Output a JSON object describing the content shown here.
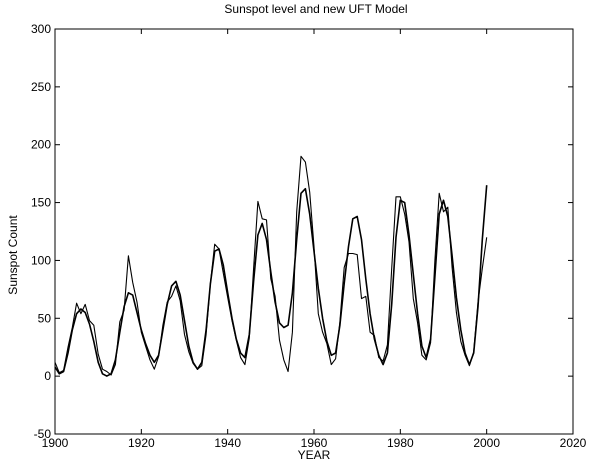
{
  "chart_data": {
    "type": "line",
    "title": "Sunspot level and new UFT Model",
    "xlabel": "YEAR",
    "ylabel": "Sunspot Count",
    "xlim": [
      1900,
      2020
    ],
    "ylim": [
      -50,
      300
    ],
    "xticks": [
      1900,
      1920,
      1940,
      1960,
      1980,
      2000,
      2020
    ],
    "yticks": [
      -50,
      0,
      50,
      100,
      150,
      200,
      250,
      300
    ],
    "grid": false,
    "series": [
      {
        "values": [
          [
            1900,
            12
          ],
          [
            1901,
            3
          ],
          [
            1902,
            5
          ],
          [
            1903,
            25
          ],
          [
            1904,
            42
          ],
          [
            1905,
            63
          ],
          [
            1906,
            54
          ],
          [
            1907,
            62
          ],
          [
            1908,
            48
          ],
          [
            1909,
            44
          ],
          [
            1910,
            19
          ],
          [
            1911,
            6
          ],
          [
            1912,
            4
          ],
          [
            1913,
            1
          ],
          [
            1914,
            10
          ],
          [
            1915,
            47
          ],
          [
            1916,
            57
          ],
          [
            1917,
            104
          ],
          [
            1918,
            81
          ],
          [
            1919,
            64
          ],
          [
            1920,
            38
          ],
          [
            1921,
            26
          ],
          [
            1922,
            14
          ],
          [
            1923,
            6
          ],
          [
            1924,
            17
          ],
          [
            1925,
            44
          ],
          [
            1926,
            64
          ],
          [
            1927,
            69
          ],
          [
            1928,
            78
          ],
          [
            1929,
            65
          ],
          [
            1930,
            36
          ],
          [
            1931,
            21
          ],
          [
            1932,
            11
          ],
          [
            1933,
            6
          ],
          [
            1934,
            9
          ],
          [
            1935,
            36
          ],
          [
            1936,
            80
          ],
          [
            1937,
            114
          ],
          [
            1938,
            110
          ],
          [
            1939,
            89
          ],
          [
            1940,
            68
          ],
          [
            1941,
            48
          ],
          [
            1942,
            31
          ],
          [
            1943,
            16
          ],
          [
            1944,
            10
          ],
          [
            1945,
            33
          ],
          [
            1946,
            93
          ],
          [
            1947,
            151
          ],
          [
            1948,
            136
          ],
          [
            1949,
            135
          ],
          [
            1950,
            84
          ],
          [
            1951,
            69
          ],
          [
            1952,
            31
          ],
          [
            1953,
            14
          ],
          [
            1954,
            4
          ],
          [
            1955,
            38
          ],
          [
            1956,
            142
          ],
          [
            1957,
            190
          ],
          [
            1958,
            185
          ],
          [
            1959,
            159
          ],
          [
            1960,
            112
          ],
          [
            1961,
            54
          ],
          [
            1962,
            38
          ],
          [
            1963,
            28
          ],
          [
            1964,
            10
          ],
          [
            1965,
            15
          ],
          [
            1966,
            47
          ],
          [
            1967,
            94
          ],
          [
            1968,
            106
          ],
          [
            1969,
            106
          ],
          [
            1970,
            105
          ],
          [
            1971,
            67
          ],
          [
            1972,
            69
          ],
          [
            1973,
            38
          ],
          [
            1974,
            35
          ],
          [
            1975,
            16
          ],
          [
            1976,
            13
          ],
          [
            1977,
            27
          ],
          [
            1978,
            93
          ],
          [
            1979,
            155
          ],
          [
            1980,
            155
          ],
          [
            1981,
            140
          ],
          [
            1982,
            116
          ],
          [
            1983,
            67
          ],
          [
            1984,
            46
          ],
          [
            1985,
            18
          ],
          [
            1986,
            14
          ],
          [
            1987,
            29
          ],
          [
            1988,
            100
          ],
          [
            1989,
            158
          ],
          [
            1990,
            142
          ],
          [
            1991,
            146
          ],
          [
            1992,
            94
          ],
          [
            1993,
            55
          ],
          [
            1994,
            30
          ],
          [
            1995,
            18
          ],
          [
            1996,
            9
          ],
          [
            1997,
            21
          ],
          [
            1998,
            64
          ],
          [
            1999,
            93
          ],
          [
            2000,
            120
          ]
        ]
      },
      {
        "values": [
          [
            1900,
            8
          ],
          [
            1901,
            2
          ],
          [
            1902,
            4
          ],
          [
            1903,
            20
          ],
          [
            1904,
            40
          ],
          [
            1905,
            54
          ],
          [
            1906,
            58
          ],
          [
            1907,
            55
          ],
          [
            1908,
            45
          ],
          [
            1909,
            30
          ],
          [
            1910,
            12
          ],
          [
            1911,
            2
          ],
          [
            1912,
            0
          ],
          [
            1913,
            2
          ],
          [
            1914,
            14
          ],
          [
            1915,
            38
          ],
          [
            1916,
            60
          ],
          [
            1917,
            72
          ],
          [
            1918,
            70
          ],
          [
            1919,
            55
          ],
          [
            1920,
            40
          ],
          [
            1921,
            28
          ],
          [
            1922,
            18
          ],
          [
            1923,
            12
          ],
          [
            1924,
            18
          ],
          [
            1925,
            40
          ],
          [
            1926,
            62
          ],
          [
            1927,
            78
          ],
          [
            1928,
            82
          ],
          [
            1929,
            70
          ],
          [
            1930,
            48
          ],
          [
            1931,
            26
          ],
          [
            1932,
            12
          ],
          [
            1933,
            6
          ],
          [
            1934,
            12
          ],
          [
            1935,
            40
          ],
          [
            1936,
            80
          ],
          [
            1937,
            108
          ],
          [
            1938,
            110
          ],
          [
            1939,
            96
          ],
          [
            1940,
            72
          ],
          [
            1941,
            50
          ],
          [
            1942,
            32
          ],
          [
            1943,
            20
          ],
          [
            1944,
            16
          ],
          [
            1945,
            36
          ],
          [
            1946,
            82
          ],
          [
            1947,
            122
          ],
          [
            1948,
            132
          ],
          [
            1949,
            118
          ],
          [
            1950,
            90
          ],
          [
            1951,
            64
          ],
          [
            1952,
            46
          ],
          [
            1953,
            42
          ],
          [
            1954,
            44
          ],
          [
            1955,
            72
          ],
          [
            1956,
            118
          ],
          [
            1957,
            158
          ],
          [
            1958,
            162
          ],
          [
            1959,
            140
          ],
          [
            1960,
            108
          ],
          [
            1961,
            76
          ],
          [
            1962,
            50
          ],
          [
            1963,
            30
          ],
          [
            1964,
            18
          ],
          [
            1965,
            20
          ],
          [
            1966,
            44
          ],
          [
            1967,
            80
          ],
          [
            1968,
            112
          ],
          [
            1969,
            136
          ],
          [
            1970,
            138
          ],
          [
            1971,
            118
          ],
          [
            1972,
            84
          ],
          [
            1973,
            54
          ],
          [
            1974,
            32
          ],
          [
            1975,
            18
          ],
          [
            1976,
            10
          ],
          [
            1977,
            20
          ],
          [
            1978,
            62
          ],
          [
            1979,
            120
          ],
          [
            1980,
            152
          ],
          [
            1981,
            150
          ],
          [
            1982,
            122
          ],
          [
            1983,
            88
          ],
          [
            1984,
            54
          ],
          [
            1985,
            26
          ],
          [
            1986,
            16
          ],
          [
            1987,
            32
          ],
          [
            1988,
            86
          ],
          [
            1989,
            140
          ],
          [
            1990,
            152
          ],
          [
            1991,
            138
          ],
          [
            1992,
            104
          ],
          [
            1993,
            68
          ],
          [
            1994,
            40
          ],
          [
            1995,
            20
          ],
          [
            1996,
            10
          ],
          [
            1997,
            20
          ],
          [
            1998,
            60
          ],
          [
            1999,
            118
          ],
          [
            2000,
            165
          ]
        ]
      }
    ]
  }
}
